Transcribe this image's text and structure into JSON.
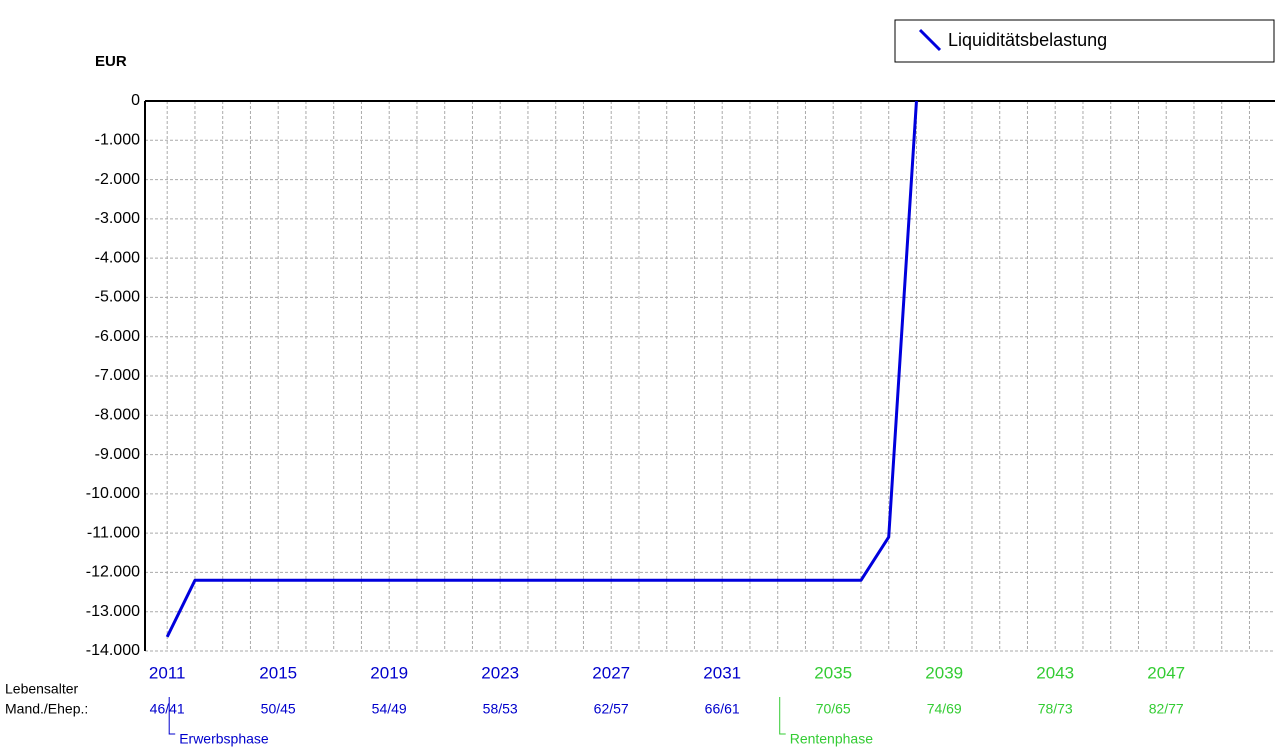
{
  "chart_data": {
    "type": "line",
    "y_label": "EUR",
    "x": [
      2011,
      2012,
      2013,
      2014,
      2015,
      2016,
      2017,
      2018,
      2019,
      2020,
      2021,
      2022,
      2023,
      2024,
      2025,
      2026,
      2027,
      2028,
      2029,
      2030,
      2031,
      2032,
      2033,
      2034,
      2035,
      2036,
      2037,
      2038
    ],
    "series": [
      {
        "name": "Liquiditätsbelastung",
        "color": "#0000dd",
        "values": [
          -13640,
          -12200,
          -12200,
          -12200,
          -12200,
          -12200,
          -12200,
          -12200,
          -12200,
          -12200,
          -12200,
          -12200,
          -12200,
          -12200,
          -12200,
          -12200,
          -12200,
          -12200,
          -12200,
          -12200,
          -12200,
          -12200,
          -12200,
          -12200,
          -12200,
          -12200,
          -11100,
          0
        ]
      }
    ],
    "xlim": [
      2010.2,
      2050.92
    ],
    "xticks": [
      2011,
      2015,
      2019,
      2023,
      2027,
      2031,
      2035,
      2039,
      2043,
      2047
    ],
    "xtick_colors": [
      "#0000cc",
      "#0000cc",
      "#0000cc",
      "#0000cc",
      "#0000cc",
      "#0000cc",
      "#33cc33",
      "#33cc33",
      "#33cc33",
      "#33cc33"
    ],
    "age_title": [
      "Lebensalter",
      "Mand./Ehep.:"
    ],
    "age_labels": [
      "46/41",
      "50/45",
      "54/49",
      "58/53",
      "62/57",
      "66/61",
      "70/65",
      "74/69",
      "78/73",
      "82/77"
    ],
    "phases": [
      {
        "label": "Erwerbsphase",
        "start": 2011,
        "color": "#0000cc"
      },
      {
        "label": "Rentenphase",
        "start": 2033,
        "color": "#33cc33"
      }
    ],
    "ylim": [
      -14000,
      0
    ],
    "yticks": [
      0,
      {
        "value": -1000,
        "label": "-1.000"
      },
      {
        "value": -2000,
        "label": "-2.000"
      },
      {
        "value": -3000,
        "label": "-3.000"
      },
      {
        "value": -4000,
        "label": "-4.000"
      },
      {
        "value": -5000,
        "label": "-5.000"
      },
      {
        "value": -6000,
        "label": "-6.000"
      },
      {
        "value": -7000,
        "label": "-7.000"
      },
      {
        "value": -8000,
        "label": "-8.000"
      },
      {
        "value": -9000,
        "label": "-9.000"
      },
      {
        "value": -10000,
        "label": "-10.000"
      },
      {
        "value": -11000,
        "label": "-11.000"
      },
      {
        "value": -12000,
        "label": "-12.000"
      },
      {
        "value": -13000,
        "label": "-13.000"
      },
      {
        "value": -14000,
        "label": "-14.000"
      }
    ],
    "grid": true,
    "legend": "top-right"
  }
}
